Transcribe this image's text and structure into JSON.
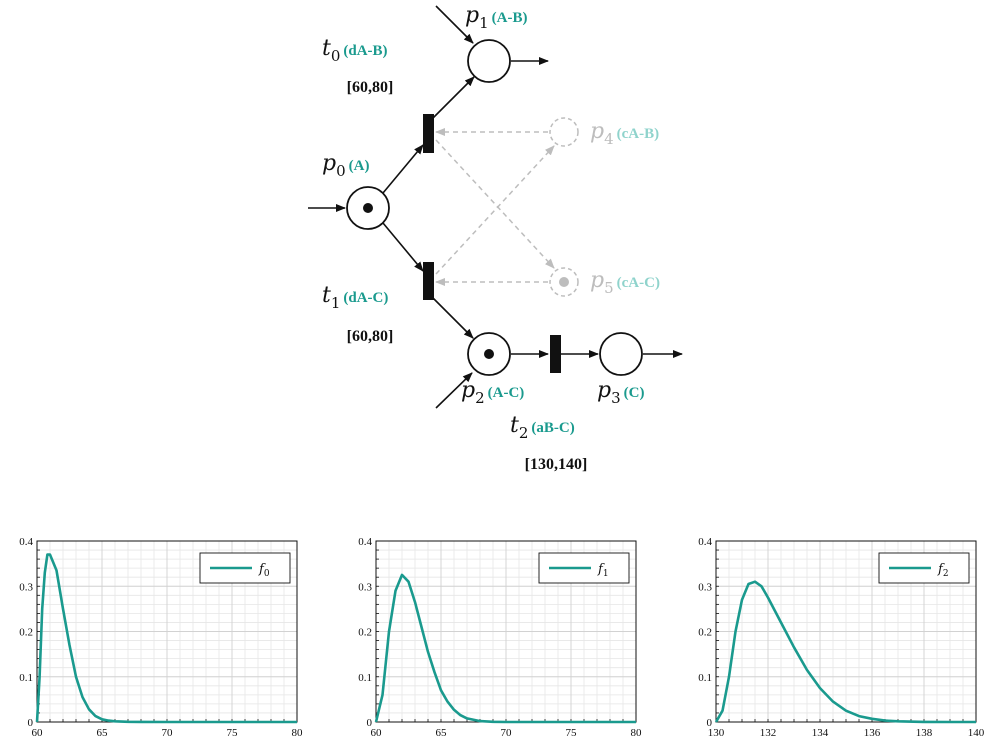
{
  "net": {
    "places": [
      {
        "name": "p",
        "sub": "0",
        "tag": "(A)",
        "tokens": 1,
        "ghost": false
      },
      {
        "name": "p",
        "sub": "1",
        "tag": "(A-B)",
        "tokens": 0,
        "ghost": false
      },
      {
        "name": "p",
        "sub": "2",
        "tag": "(A-C)",
        "tokens": 1,
        "ghost": false
      },
      {
        "name": "p",
        "sub": "3",
        "tag": "(C)",
        "tokens": 0,
        "ghost": false
      },
      {
        "name": "p",
        "sub": "4",
        "tag": "(cA-B)",
        "tokens": 0,
        "ghost": true
      },
      {
        "name": "p",
        "sub": "5",
        "tag": "(cA-C)",
        "tokens": 1,
        "ghost": true
      }
    ],
    "transitions": [
      {
        "name": "t",
        "sub": "0",
        "tag": "(dA-B)",
        "interval": "[60,80]"
      },
      {
        "name": "t",
        "sub": "1",
        "tag": "(dA-C)",
        "interval": "[60,80]"
      },
      {
        "name": "t",
        "sub": "2",
        "tag": "(aB-C)",
        "interval": "[130,140]"
      }
    ]
  },
  "chart_data": [
    {
      "type": "line",
      "xlim": [
        60,
        80
      ],
      "ylim": [
        0,
        0.4
      ],
      "xticks": [
        60,
        65,
        70,
        75,
        80
      ],
      "yticks": [
        0,
        0.1,
        0.2,
        0.3,
        0.4
      ],
      "grid": true,
      "legend_placement": "top-right",
      "series": [
        {
          "name": "f",
          "name_sub": "0",
          "color": "#1a9a8e",
          "x": [
            60,
            60.2,
            60.4,
            60.6,
            60.8,
            61,
            61.5,
            62,
            62.5,
            63,
            63.5,
            64,
            64.5,
            65,
            65.5,
            66,
            67,
            68,
            70,
            72,
            75,
            78,
            80
          ],
          "y": [
            0,
            0.1,
            0.25,
            0.33,
            0.37,
            0.37,
            0.335,
            0.25,
            0.17,
            0.1,
            0.055,
            0.028,
            0.013,
            0.006,
            0.003,
            0.0015,
            0.0005,
            0.0002,
            0,
            0,
            0,
            0,
            0
          ]
        }
      ]
    },
    {
      "type": "line",
      "xlim": [
        60,
        80
      ],
      "ylim": [
        0,
        0.4
      ],
      "xticks": [
        60,
        65,
        70,
        75,
        80
      ],
      "yticks": [
        0,
        0.1,
        0.2,
        0.3,
        0.4
      ],
      "grid": true,
      "legend_placement": "top-right",
      "series": [
        {
          "name": "f",
          "name_sub": "1",
          "color": "#1a9a8e",
          "x": [
            60,
            60.5,
            61,
            61.5,
            62,
            62.5,
            63,
            63.5,
            64,
            64.5,
            65,
            65.5,
            66,
            66.5,
            67,
            68,
            69,
            70,
            72,
            75,
            78,
            80
          ],
          "y": [
            0,
            0.06,
            0.2,
            0.29,
            0.325,
            0.31,
            0.265,
            0.21,
            0.155,
            0.11,
            0.07,
            0.045,
            0.027,
            0.015,
            0.008,
            0.002,
            0.0005,
            0,
            0,
            0,
            0,
            0
          ]
        }
      ]
    },
    {
      "type": "line",
      "xlim": [
        130,
        140
      ],
      "ylim": [
        0,
        0.4
      ],
      "xticks": [
        130,
        132,
        134,
        136,
        138,
        140
      ],
      "yticks": [
        0,
        0.1,
        0.2,
        0.3,
        0.4
      ],
      "grid": true,
      "legend_placement": "top-right",
      "series": [
        {
          "name": "f",
          "name_sub": "2",
          "color": "#1a9a8e",
          "x": [
            130,
            130.25,
            130.5,
            130.75,
            131,
            131.25,
            131.5,
            131.75,
            132,
            132.5,
            133,
            133.5,
            134,
            134.5,
            135,
            135.5,
            136,
            136.5,
            137,
            138,
            139,
            140
          ],
          "y": [
            0,
            0.025,
            0.1,
            0.2,
            0.27,
            0.305,
            0.31,
            0.3,
            0.275,
            0.22,
            0.165,
            0.115,
            0.075,
            0.045,
            0.025,
            0.013,
            0.007,
            0.003,
            0.0015,
            0.0003,
            0,
            0
          ]
        }
      ]
    }
  ]
}
